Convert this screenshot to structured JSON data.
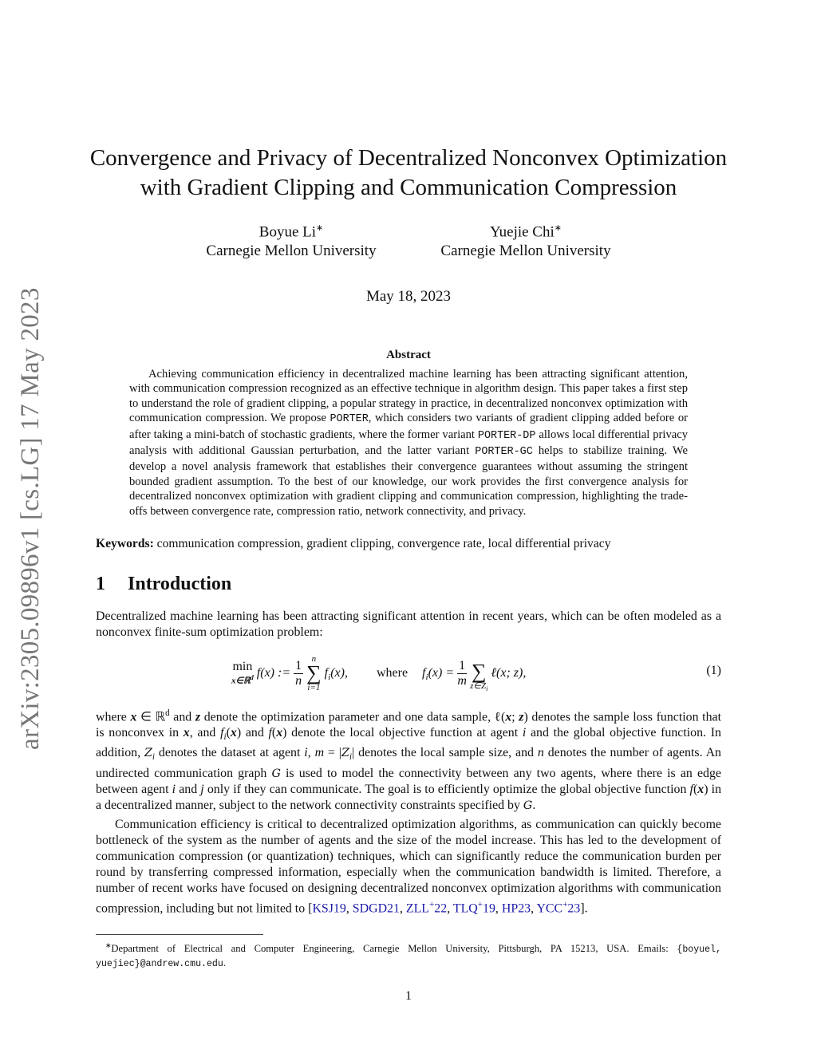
{
  "stamp": "arXiv:2305.09896v1  [cs.LG]  17 May 2023",
  "title": [
    "Convergence and Privacy of Decentralized Nonconvex Optimization",
    "with Gradient Clipping and Communication Compression"
  ],
  "authors": [
    {
      "name": "Boyue Li",
      "mark": "∗",
      "affiliation": "Carnegie Mellon University"
    },
    {
      "name": "Yuejie Chi",
      "mark": "∗",
      "affiliation": "Carnegie Mellon University"
    }
  ],
  "date": "May 18, 2023",
  "abstract_heading": "Abstract",
  "abstract": [
    [
      "t",
      "Achieving communication efficiency in decentralized machine learning has been attracting significant attention, with communication compression recognized as an effective technique in algorithm design. This paper takes a first step to understand the role of gradient clipping, a popular strategy in practice, in decentralized nonconvex optimization with communication compression. We propose "
    ],
    [
      "tt",
      "PORTER"
    ],
    [
      "t",
      ", which considers two variants of gradient clipping added before or after taking a mini-batch of stochastic gradients, where the former variant "
    ],
    [
      "tt",
      "PORTER-DP"
    ],
    [
      "t",
      " allows local differential privacy analysis with additional Gaussian perturbation, and the latter variant "
    ],
    [
      "tt",
      "PORTER-GC"
    ],
    [
      "t",
      " helps to stabilize training. We develop a novel analysis framework that establishes their convergence guarantees without assuming the stringent bounded gradient assumption. To the best of our knowledge, our work provides the first convergence analysis for decentralized nonconvex optimization with gradient clipping and communication compression, highlighting the trade-offs between convergence rate, compression ratio, network connectivity, and privacy."
    ]
  ],
  "keywords": {
    "label": "Keywords:",
    "text": "communication compression, gradient clipping, convergence rate, local differential privacy"
  },
  "section": {
    "number": "1",
    "title": "Introduction"
  },
  "paragraphs": {
    "p1": [
      [
        "t",
        "Decentralized machine learning has been attracting significant attention in recent years, which can be often modeled as a nonconvex finite-sum optimization problem:"
      ]
    ],
    "p2": [
      [
        "t",
        "where "
      ],
      [
        "b",
        "x"
      ],
      [
        "t",
        " ∈ ℝ"
      ],
      [
        "sup",
        "d"
      ],
      [
        "t",
        " and "
      ],
      [
        "b",
        "z"
      ],
      [
        "t",
        " denote the optimization parameter and one data sample, ℓ("
      ],
      [
        "b",
        "x"
      ],
      [
        "t",
        "; "
      ],
      [
        "b",
        "z"
      ],
      [
        "t",
        ") denotes the sample loss function that is nonconvex in "
      ],
      [
        "b",
        "x"
      ],
      [
        "t",
        ", and "
      ],
      [
        "i",
        "f"
      ],
      [
        "sub",
        "i"
      ],
      [
        "t",
        "("
      ],
      [
        "b",
        "x"
      ],
      [
        "t",
        ") and "
      ],
      [
        "i",
        "f"
      ],
      [
        "t",
        "("
      ],
      [
        "b",
        "x"
      ],
      [
        "t",
        ") denote the local objective function at agent "
      ],
      [
        "i",
        "i"
      ],
      [
        "t",
        " and the global objective function. In addition, "
      ],
      [
        "cal",
        "Z"
      ],
      [
        "sub",
        "i"
      ],
      [
        "t",
        " denotes the dataset at agent "
      ],
      [
        "i",
        "i"
      ],
      [
        "t",
        ", "
      ],
      [
        "i",
        "m"
      ],
      [
        "t",
        " = |"
      ],
      [
        "cal",
        "Z"
      ],
      [
        "sub",
        "i"
      ],
      [
        "t",
        "| denotes the local sample size, and "
      ],
      [
        "i",
        "n"
      ],
      [
        "t",
        " denotes the number of agents. An undirected communication graph "
      ],
      [
        "cal",
        "G"
      ],
      [
        "t",
        " is used to model the connectivity between any two agents, where there is an edge between agent "
      ],
      [
        "i",
        "i"
      ],
      [
        "t",
        " and "
      ],
      [
        "i",
        "j"
      ],
      [
        "t",
        " only if they can communicate. The goal is to efficiently optimize the global objective function "
      ],
      [
        "i",
        "f"
      ],
      [
        "t",
        "("
      ],
      [
        "b",
        "x"
      ],
      [
        "t",
        ") in a decentralized manner, subject to the network connectivity constraints specified by "
      ],
      [
        "cal",
        "G"
      ],
      [
        "t",
        "."
      ]
    ],
    "p3": [
      [
        "t",
        "Communication efficiency is critical to decentralized optimization algorithms, as communication can quickly become bottleneck of the system as the number of agents and the size of the model increase. This has led to the development of communication compression (or quantization) techniques, which can significantly reduce the communication burden per round by transferring compressed information, especially when the communication bandwidth is limited. Therefore, a number of recent works have focused on designing decentralized nonconvex optimization algorithms with communication compression, including but not limited to ["
      ],
      [
        "link",
        "KSJ19"
      ],
      [
        "t",
        ", "
      ],
      [
        "link",
        "SDGD21"
      ],
      [
        "t",
        ", "
      ],
      [
        "link",
        "ZLL"
      ],
      [
        "linksup",
        "+"
      ],
      [
        "link",
        "22"
      ],
      [
        "t",
        ", "
      ],
      [
        "link",
        "TLQ"
      ],
      [
        "linksup",
        "+"
      ],
      [
        "link",
        "19"
      ],
      [
        "t",
        ", "
      ],
      [
        "link",
        "HP23"
      ],
      [
        "t",
        ", "
      ],
      [
        "link",
        "YCC"
      ],
      [
        "linksup",
        "+"
      ],
      [
        "link",
        "23"
      ],
      [
        "t",
        "]."
      ]
    ]
  },
  "equation": {
    "min": "min",
    "min_sub": "x∈ℝ",
    "min_sub_sup": "d",
    "lhs": "f(x) :=",
    "one": "1",
    "n": "n",
    "sum_top": "n",
    "sum_bottom": "i=1",
    "term1": "f",
    "term1_sub": "i",
    "term1_arg": "(x),",
    "where": "where",
    "lhs2": "f",
    "lhs2_sub": "i",
    "lhs2_arg": "(x) =",
    "m": "m",
    "sum2_bottom": "z∈Z",
    "sum2_bottom_sub": "i",
    "term2": "ℓ(x; z),",
    "number": "(1)"
  },
  "footnote": [
    [
      "sup",
      "∗"
    ],
    [
      "t",
      "Department of Electrical and Computer Engineering, Carnegie Mellon University, Pittsburgh, PA 15213, USA. Emails: "
    ],
    [
      "tt",
      "{boyuel, yuejiec}@andrew.cmu.edu"
    ],
    [
      "t",
      "."
    ]
  ],
  "page_number": "1",
  "colors": {
    "link": "#1a1aa8",
    "stamp": "#777777"
  }
}
